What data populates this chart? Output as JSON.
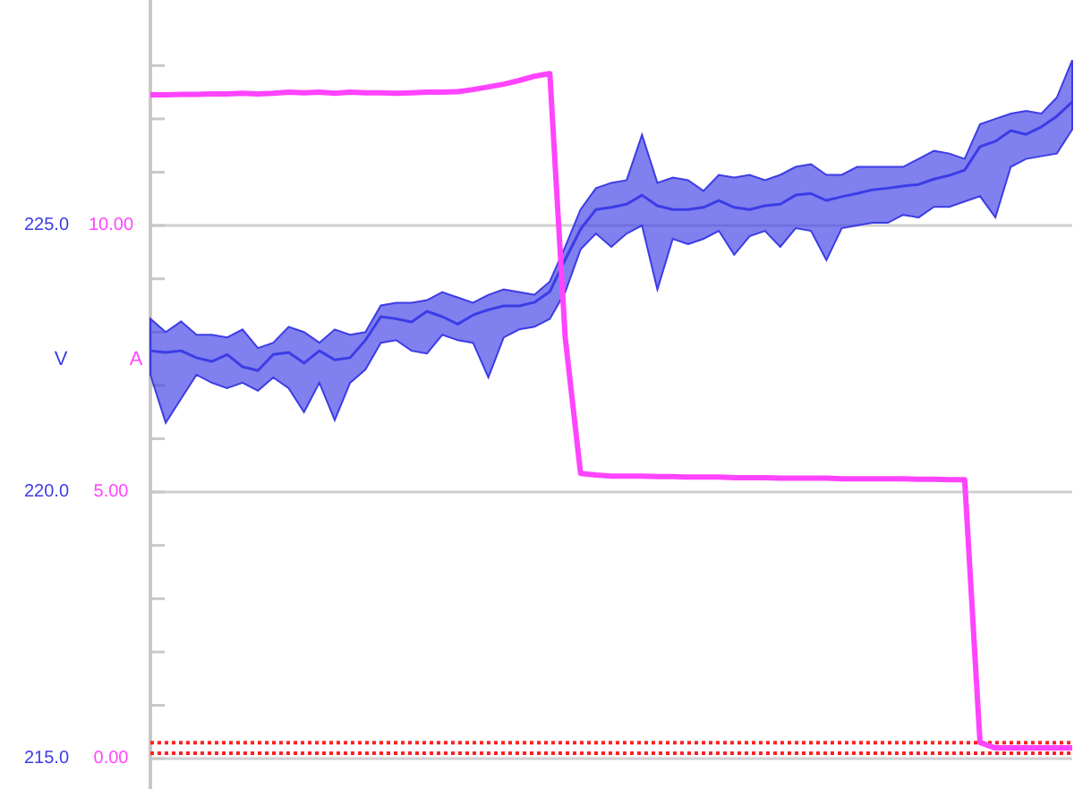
{
  "chart_data": {
    "type": "line",
    "ylabel": "V",
    "y2label": "A",
    "categories": [
      null,
      null,
      null,
      null,
      null,
      null,
      null,
      null,
      null,
      null,
      null,
      null,
      null,
      null,
      null,
      null,
      null,
      null,
      null,
      null,
      null,
      null,
      null,
      null,
      null,
      null,
      null,
      null,
      null,
      null,
      null,
      null,
      null,
      null,
      null,
      null,
      null,
      null,
      null,
      null,
      null,
      null,
      null,
      null,
      null,
      null,
      null,
      null,
      null,
      null,
      null,
      null,
      null,
      null,
      null,
      null,
      null,
      null,
      null,
      null,
      null
    ],
    "ylim": [
      214.43,
      229.23
    ],
    "yticks": [
      {
        "value": 215,
        "label": "215.0"
      },
      {
        "value": 216,
        "label": null
      },
      {
        "value": 217,
        "label": null
      },
      {
        "value": 218,
        "label": null
      },
      {
        "value": 219,
        "label": null
      },
      {
        "value": 220,
        "label": "220.0"
      },
      {
        "value": 221,
        "label": null
      },
      {
        "value": 222,
        "label": null
      },
      {
        "value": 223,
        "label": null
      },
      {
        "value": 224,
        "label": null
      },
      {
        "value": 225,
        "label": "225.0"
      },
      {
        "value": 226,
        "label": null
      },
      {
        "value": 227,
        "label": null
      },
      {
        "value": 228,
        "label": null
      }
    ],
    "y2lim": [
      -0.57,
      14.23
    ],
    "y2ticks": [
      {
        "value": 0,
        "label": "0.00"
      },
      {
        "value": 5,
        "label": "5.00"
      },
      {
        "value": 10,
        "label": "10.00"
      }
    ],
    "grid": "y",
    "tick_labels": "y",
    "ref_lines": [
      {
        "axis": "y2",
        "value": 0.3,
        "color": "#ff2020",
        "line_style": "dotted"
      },
      {
        "axis": "y2",
        "value": 0.1,
        "color": "#ff2020",
        "line_style": "dotted"
      }
    ],
    "series": [
      {
        "color": "#3c3ce6",
        "values": [
          222.65,
          222.62,
          222.65,
          222.52,
          222.45,
          222.58,
          222.35,
          222.28,
          222.58,
          222.62,
          222.42,
          222.65,
          222.48,
          222.52,
          222.85,
          223.29,
          223.25,
          223.19,
          223.39,
          223.29,
          223.15,
          223.32,
          223.42,
          223.49,
          223.49,
          223.56,
          223.76,
          224.36,
          224.93,
          225.3,
          225.34,
          225.4,
          225.57,
          225.37,
          225.3,
          225.3,
          225.34,
          225.47,
          225.34,
          225.3,
          225.37,
          225.4,
          225.57,
          225.6,
          225.47,
          225.54,
          225.6,
          225.67,
          225.7,
          225.74,
          225.77,
          225.87,
          225.94,
          226.04,
          226.48,
          226.58,
          226.78,
          226.71,
          226.85,
          227.05,
          227.32
        ],
        "upper": [
          223.25,
          223.0,
          223.2,
          222.95,
          222.95,
          222.9,
          223.05,
          222.7,
          222.8,
          223.1,
          223.0,
          222.8,
          223.05,
          222.95,
          223.0,
          223.5,
          223.55,
          223.55,
          223.6,
          223.75,
          223.65,
          223.55,
          223.7,
          223.8,
          223.75,
          223.7,
          223.95,
          224.6,
          225.3,
          225.7,
          225.8,
          225.85,
          226.7,
          225.8,
          225.9,
          225.85,
          225.65,
          225.95,
          225.9,
          225.95,
          225.85,
          225.95,
          226.1,
          226.15,
          225.95,
          225.95,
          226.1,
          226.1,
          226.1,
          226.1,
          226.25,
          226.4,
          226.35,
          226.25,
          226.9,
          227.0,
          227.1,
          227.15,
          227.1,
          227.4,
          228.1
        ],
        "lower": [
          222.2,
          221.3,
          221.75,
          222.2,
          222.05,
          221.95,
          222.05,
          221.9,
          222.15,
          221.95,
          221.5,
          222.05,
          221.35,
          222.05,
          222.3,
          222.8,
          222.85,
          222.65,
          222.6,
          222.95,
          222.85,
          222.8,
          222.15,
          222.9,
          223.05,
          223.1,
          223.25,
          223.75,
          224.55,
          224.85,
          224.6,
          224.85,
          225.0,
          223.8,
          224.75,
          224.65,
          224.75,
          224.9,
          224.45,
          224.8,
          224.9,
          224.6,
          224.95,
          224.9,
          224.35,
          224.95,
          225.0,
          225.05,
          225.05,
          225.2,
          225.15,
          225.35,
          225.35,
          225.45,
          225.55,
          225.15,
          226.1,
          226.25,
          226.3,
          226.35,
          226.8
        ]
      },
      {
        "color": "#ff44ff",
        "axis": "y2",
        "values": [
          12.45,
          12.45,
          12.46,
          12.46,
          12.47,
          12.47,
          12.48,
          12.47,
          12.48,
          12.5,
          12.49,
          12.5,
          12.48,
          12.5,
          12.49,
          12.49,
          12.48,
          12.49,
          12.5,
          12.5,
          12.51,
          12.55,
          12.6,
          12.65,
          12.72,
          12.8,
          12.85,
          7.9,
          5.35,
          5.32,
          5.3,
          5.3,
          5.3,
          5.29,
          5.29,
          5.28,
          5.28,
          5.28,
          5.27,
          5.27,
          5.27,
          5.26,
          5.26,
          5.26,
          5.26,
          5.25,
          5.25,
          5.25,
          5.25,
          5.25,
          5.24,
          5.24,
          5.23,
          5.23,
          0.3,
          0.2,
          0.2,
          0.2,
          0.2,
          0.2,
          0.2
        ]
      }
    ]
  }
}
